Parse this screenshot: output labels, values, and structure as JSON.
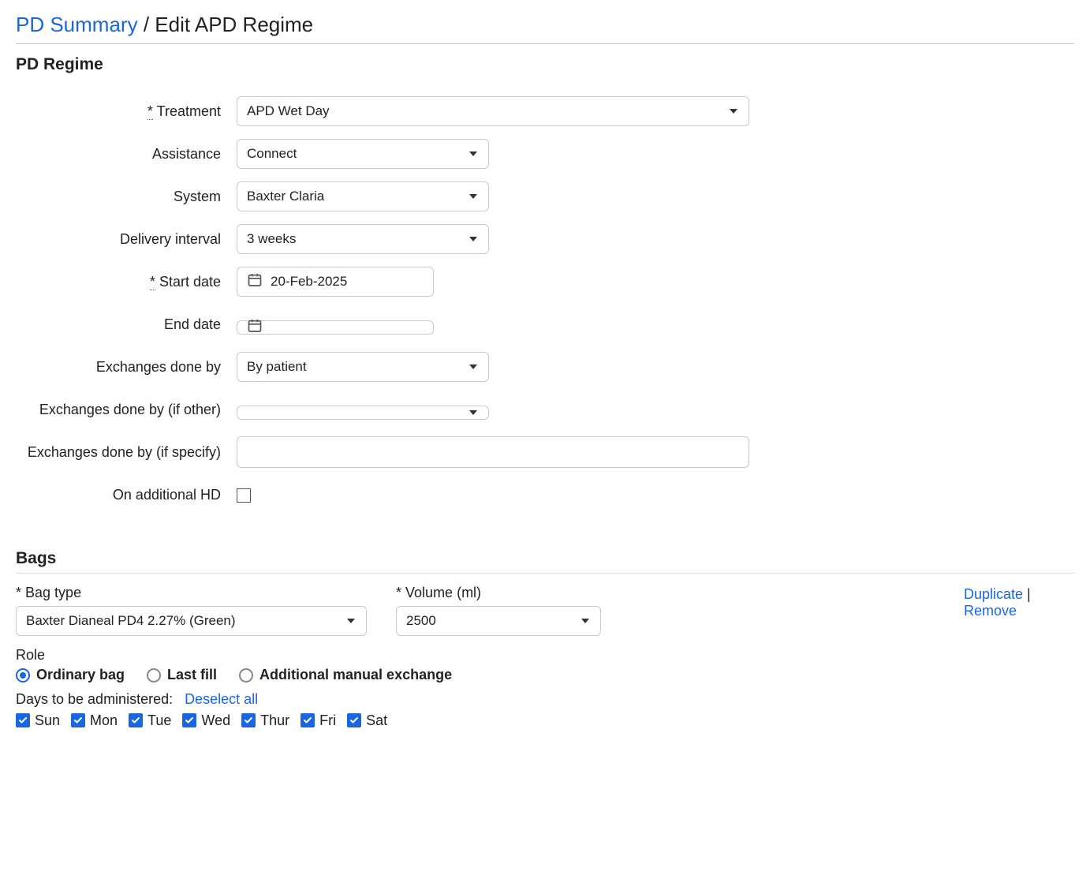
{
  "colors": {
    "link": "#1a66e0",
    "text": "#222222",
    "border": "#c9c9c9",
    "divider": "#aac7d6"
  },
  "breadcrumb": {
    "link_label": "PD Summary",
    "separator": "/",
    "current": "Edit APD Regime"
  },
  "section_regime": {
    "title": "PD Regime",
    "fields": {
      "treatment": {
        "label": "Treatment",
        "required": true,
        "value": "APD Wet Day",
        "width": "full"
      },
      "assistance": {
        "label": "Assistance",
        "required": false,
        "value": "Connect",
        "width": "med"
      },
      "system": {
        "label": "System",
        "required": false,
        "value": "Baxter Claria",
        "width": "med"
      },
      "delivery_interval": {
        "label": "Delivery interval",
        "required": false,
        "value": "3 weeks",
        "width": "med"
      },
      "start_date": {
        "label": "Start date",
        "required": true,
        "value": "20-Feb-2025"
      },
      "end_date": {
        "label": "End date",
        "required": false,
        "value": ""
      },
      "exchanges_done_by": {
        "label": "Exchanges done by",
        "required": false,
        "value": "By patient",
        "width": "med"
      },
      "exchanges_other": {
        "label": "Exchanges done by (if other)",
        "required": false,
        "value": "",
        "width": "med"
      },
      "exchanges_specify": {
        "label": "Exchanges done by (if specify)",
        "required": false,
        "value": "",
        "width": "full"
      },
      "on_additional_hd": {
        "label": "On additional HD",
        "required": false,
        "checked": false
      }
    }
  },
  "section_bags": {
    "title": "Bags",
    "actions": {
      "duplicate": "Duplicate",
      "remove": "Remove"
    },
    "bag_type": {
      "label": "Bag type",
      "required": true,
      "value": "Baxter Dianeal PD4 2.27% (Green)"
    },
    "volume": {
      "label": "Volume (ml)",
      "required": true,
      "value": "2500"
    },
    "role": {
      "label": "Role",
      "options": [
        {
          "key": "ordinary",
          "label": "Ordinary bag",
          "checked": true
        },
        {
          "key": "last_fill",
          "label": "Last fill",
          "checked": false
        },
        {
          "key": "manual",
          "label": "Additional manual exchange",
          "checked": false
        }
      ]
    },
    "days": {
      "label": "Days to be administered:",
      "deselect_label": "Deselect all",
      "items": [
        {
          "key": "sun",
          "label": "Sun",
          "checked": true
        },
        {
          "key": "mon",
          "label": "Mon",
          "checked": true
        },
        {
          "key": "tue",
          "label": "Tue",
          "checked": true
        },
        {
          "key": "wed",
          "label": "Wed",
          "checked": true
        },
        {
          "key": "thur",
          "label": "Thur",
          "checked": true
        },
        {
          "key": "fri",
          "label": "Fri",
          "checked": true
        },
        {
          "key": "sat",
          "label": "Sat",
          "checked": true
        }
      ]
    }
  }
}
